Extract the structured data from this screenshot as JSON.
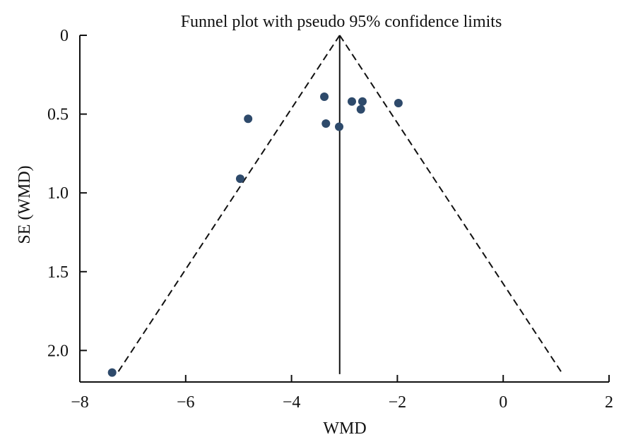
{
  "chart_data": {
    "type": "scatter",
    "title": "Funnel plot with pseudo 95% confidence limits",
    "xlabel": "WMD",
    "ylabel": "SE (WMD)",
    "xlim": [
      -8,
      2
    ],
    "ylim": [
      0,
      2.2
    ],
    "y_inverted": true,
    "xticks": [
      -8,
      -6,
      -4,
      -2,
      0,
      2
    ],
    "xtick_labels": [
      "−8",
      "−6",
      "−4",
      "−2",
      "0",
      "2"
    ],
    "yticks": [
      0,
      0.5,
      1.0,
      1.5,
      2.0
    ],
    "ytick_labels": [
      "0",
      "0.5",
      "1.0",
      "1.5",
      "2.0"
    ],
    "grid": false,
    "pooled_estimate": -3.09,
    "funnel_se_max": 2.15,
    "z": 1.96,
    "point_color": "#2e4a6b",
    "points": [
      {
        "x": -7.39,
        "y": 2.14
      },
      {
        "x": -4.97,
        "y": 0.91
      },
      {
        "x": -4.82,
        "y": 0.53
      },
      {
        "x": -3.38,
        "y": 0.39
      },
      {
        "x": -3.35,
        "y": 0.56
      },
      {
        "x": -3.1,
        "y": 0.58
      },
      {
        "x": -2.86,
        "y": 0.42
      },
      {
        "x": -2.66,
        "y": 0.42
      },
      {
        "x": -2.69,
        "y": 0.47
      },
      {
        "x": -1.98,
        "y": 0.43
      }
    ]
  }
}
